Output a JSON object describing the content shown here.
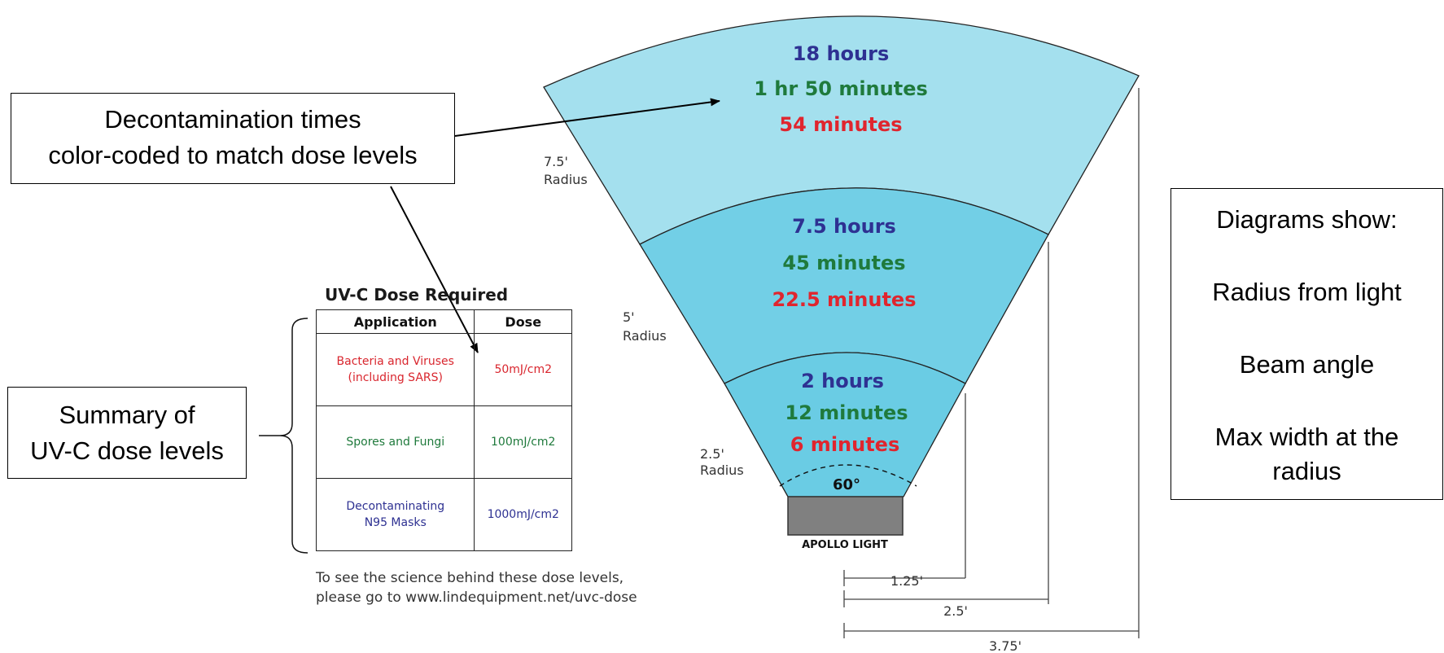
{
  "fan": {
    "bands": [
      {
        "radius_label": "7.5'",
        "radius_word": "Radius",
        "times": {
          "mask": "18 hours",
          "spores": "1 hr 50 minutes",
          "bacteria": "54 minutes"
        },
        "color": "#a4e0ee"
      },
      {
        "radius_label": "5'",
        "radius_word": "Radius",
        "times": {
          "mask": "7.5 hours",
          "spores": "45 minutes",
          "bacteria": "22.5 minutes"
        },
        "color": "#72cfe6"
      },
      {
        "radius_label": "2.5'",
        "radius_word": "Radius",
        "times": {
          "mask": "2 hours",
          "spores": "12 minutes",
          "bacteria": "6 minutes"
        },
        "color": "#6acce4"
      }
    ],
    "beam_angle": "60°",
    "light_label": "APOLLO LIGHT",
    "widths": [
      "1.25'",
      "2.5'",
      "3.75'"
    ]
  },
  "colors": {
    "mask": "#2e3192",
    "spores": "#1f7a3c",
    "bacteria": "#e0252e"
  },
  "callouts": {
    "decontamination": [
      "Decontamination times",
      "color-coded to match dose levels"
    ],
    "summary": [
      "Summary of",
      "UV-C dose levels"
    ],
    "diagrams_show": [
      "Diagrams show:",
      "Radius from light",
      "Beam angle",
      "Max width at the",
      "radius"
    ]
  },
  "dose_table": {
    "title": "UV-C Dose Required",
    "headers": [
      "Application",
      "Dose"
    ],
    "rows": [
      {
        "application": [
          "Bacteria and Viruses",
          "(including SARS)"
        ],
        "dose": "50mJ/cm2"
      },
      {
        "application": [
          "Spores and Fungi"
        ],
        "dose": "100mJ/cm2"
      },
      {
        "application": [
          "Decontaminating",
          "N95 Masks"
        ],
        "dose": "1000mJ/cm2"
      }
    ]
  },
  "footnote": [
    "To see the science behind these dose levels,",
    "please go to www.lindequipment.net/uvc-dose"
  ]
}
